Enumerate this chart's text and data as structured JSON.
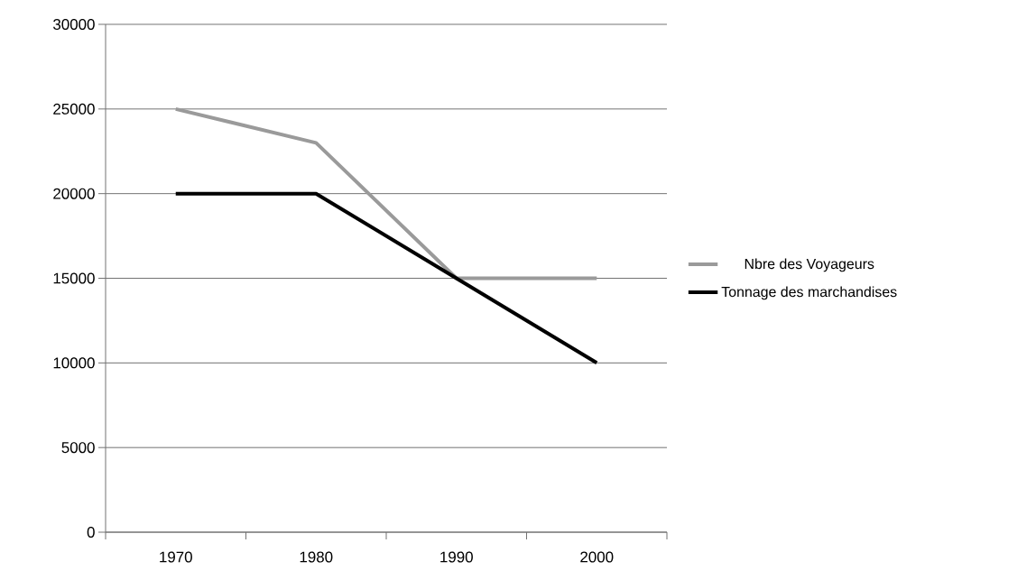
{
  "chart_data": {
    "type": "line",
    "categories": [
      "1970",
      "1980",
      "1990",
      "2000"
    ],
    "series": [
      {
        "name": "Nbre des Voyageurs",
        "color": "#9a9a9a",
        "values": [
          25000,
          23000,
          15000,
          15000
        ]
      },
      {
        "name": "Tonnage des marchandises",
        "color": "#000000",
        "values": [
          20000,
          20000,
          15000,
          10000
        ]
      }
    ],
    "ylim": [
      0,
      30000
    ],
    "yticks": [
      0,
      5000,
      10000,
      15000,
      20000,
      25000,
      30000
    ],
    "grid": "y",
    "legend": "right",
    "marker": "none",
    "line_style": "solid"
  }
}
